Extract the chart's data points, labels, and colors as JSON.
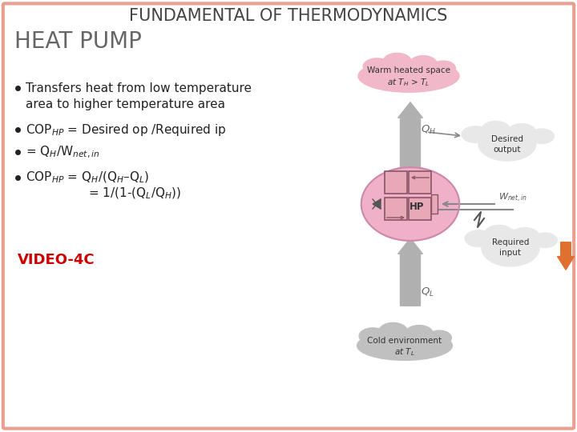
{
  "title": "FUNDAMENTAL OF THERMODYNAMICS",
  "subtitle": "HEAT PUMP",
  "bg_color": "#ffffff",
  "border_color": "#e8a090",
  "title_color": "#444444",
  "subtitle_color": "#666666",
  "video_color": "#cc0000",
  "bullet_color": "#222222",
  "video_label": "VIDEO-4C",
  "warm_cloud_color": "#f0b8c8",
  "cold_cloud_color": "#c0c0c0",
  "hp_circle_color": "#f0b0c8",
  "arrow_color": "#b0b0b0",
  "box_color": "#e8a8b8",
  "box_edge_color": "#885566",
  "cloud_outline_color": "#888888",
  "orange_tab_color": "#e07030"
}
